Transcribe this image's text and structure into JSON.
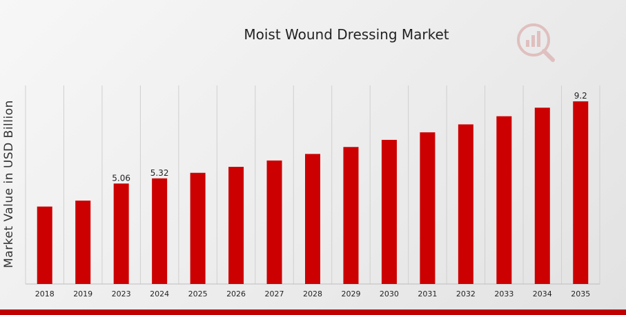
{
  "chart_data": {
    "type": "bar",
    "title": "Moist Wound Dressing Market",
    "xlabel": "",
    "ylabel": "Market Value in USD Billion",
    "categories": [
      "2018",
      "2019",
      "2023",
      "2024",
      "2025",
      "2026",
      "2027",
      "2028",
      "2029",
      "2030",
      "2031",
      "2032",
      "2033",
      "2034",
      "2035"
    ],
    "values": [
      3.9,
      4.2,
      5.06,
      5.32,
      5.6,
      5.9,
      6.22,
      6.55,
      6.9,
      7.26,
      7.64,
      8.04,
      8.45,
      8.88,
      9.2
    ],
    "data_labels": {
      "2023": "5.06",
      "2024": "5.32",
      "2035": "9.2"
    },
    "ylim": [
      0,
      10
    ],
    "grid": "vertical",
    "legend": "none",
    "bar_color": "#cc0000",
    "grid_color": "#cfcfcf"
  },
  "branding": {
    "logo_icon": "chart-magnifier-icon",
    "logo_color": "#d9a3a3"
  },
  "accent_bar_color": "#c00000"
}
